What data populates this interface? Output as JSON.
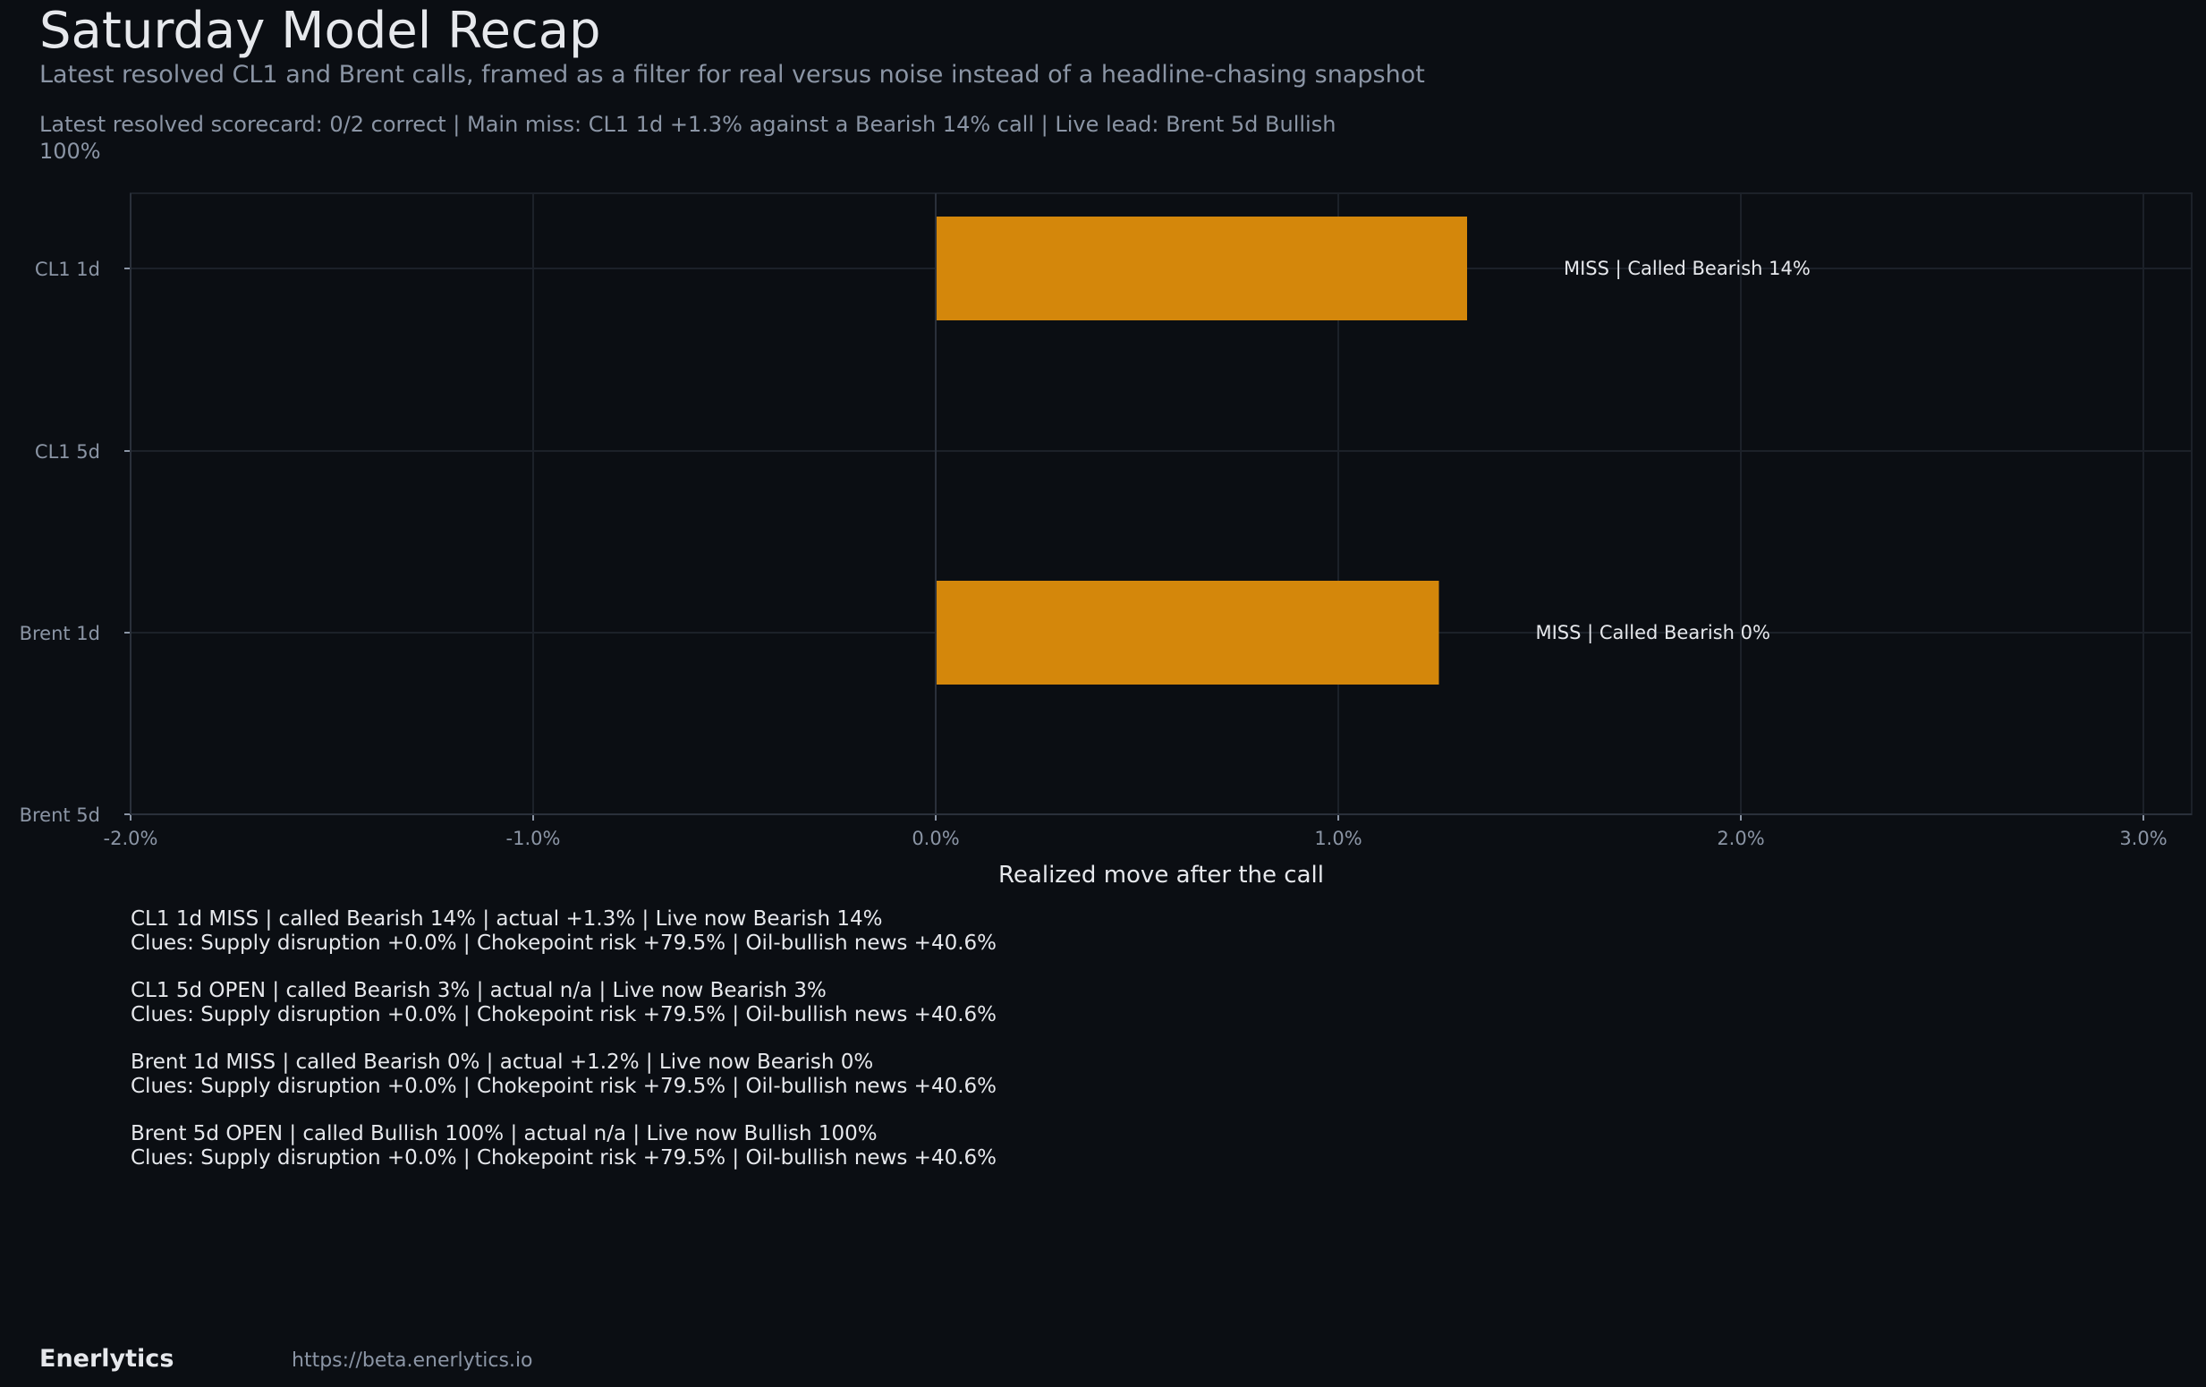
{
  "header": {
    "title": "Saturday Model Recap",
    "subtitle": "Latest resolved CL1 and Brent calls, framed as a filter for real versus noise instead of a headline-chasing snapshot",
    "summary": "Latest resolved scorecard: 0/2 correct  |  Main miss: CL1 1d +1.3% against a Bearish 14% call  |  Live lead: Brent 5d Bullish 100%"
  },
  "chart_data": {
    "type": "bar",
    "orientation": "horizontal",
    "categories": [
      "CL1 1d",
      "CL1 5d",
      "Brent 1d",
      "Brent 5d"
    ],
    "values": [
      1.32,
      null,
      1.25,
      null
    ],
    "bar_labels": [
      "MISS | Called Bearish 14%",
      "",
      "MISS | Called Bearish 0%",
      ""
    ],
    "xlabel": "Realized move after the call",
    "xlim": [
      -2.0,
      3.12
    ],
    "xticks": [
      -2.0,
      -1.0,
      0.0,
      1.0,
      2.0,
      3.0
    ],
    "xtick_labels": [
      "-2.0%",
      "-1.0%",
      "0.0%",
      "1.0%",
      "2.0%",
      "3.0%"
    ],
    "grid": true,
    "bar_color": "#d4870b"
  },
  "colors": {
    "background": "#0b0e13",
    "text": "#e6e8ec",
    "muted": "#8b95a5",
    "grid": "#1c2129",
    "axis": "#2a303a",
    "bar": "#d4870b"
  },
  "notes": [
    {
      "line1": "CL1 1d MISS | called Bearish 14% | actual +1.3% | Live now Bearish 14%",
      "line2": "Clues: Supply disruption +0.0% | Chokepoint risk +79.5% | Oil-bullish news +40.6%"
    },
    {
      "line1": "CL1 5d OPEN | called Bearish 3% | actual n/a | Live now Bearish 3%",
      "line2": "Clues: Supply disruption +0.0% | Chokepoint risk +79.5% | Oil-bullish news +40.6%"
    },
    {
      "line1": "Brent 1d MISS | called Bearish 0% | actual +1.2% | Live now Bearish 0%",
      "line2": "Clues: Supply disruption +0.0% | Chokepoint risk +79.5% | Oil-bullish news +40.6%"
    },
    {
      "line1": "Brent 5d OPEN | called Bullish 100% | actual n/a | Live now Bullish 100%",
      "line2": "Clues: Supply disruption +0.0% | Chokepoint risk +79.5% | Oil-bullish news +40.6%"
    }
  ],
  "footer": {
    "brand": "Enerlytics",
    "url": "https://beta.enerlytics.io"
  }
}
